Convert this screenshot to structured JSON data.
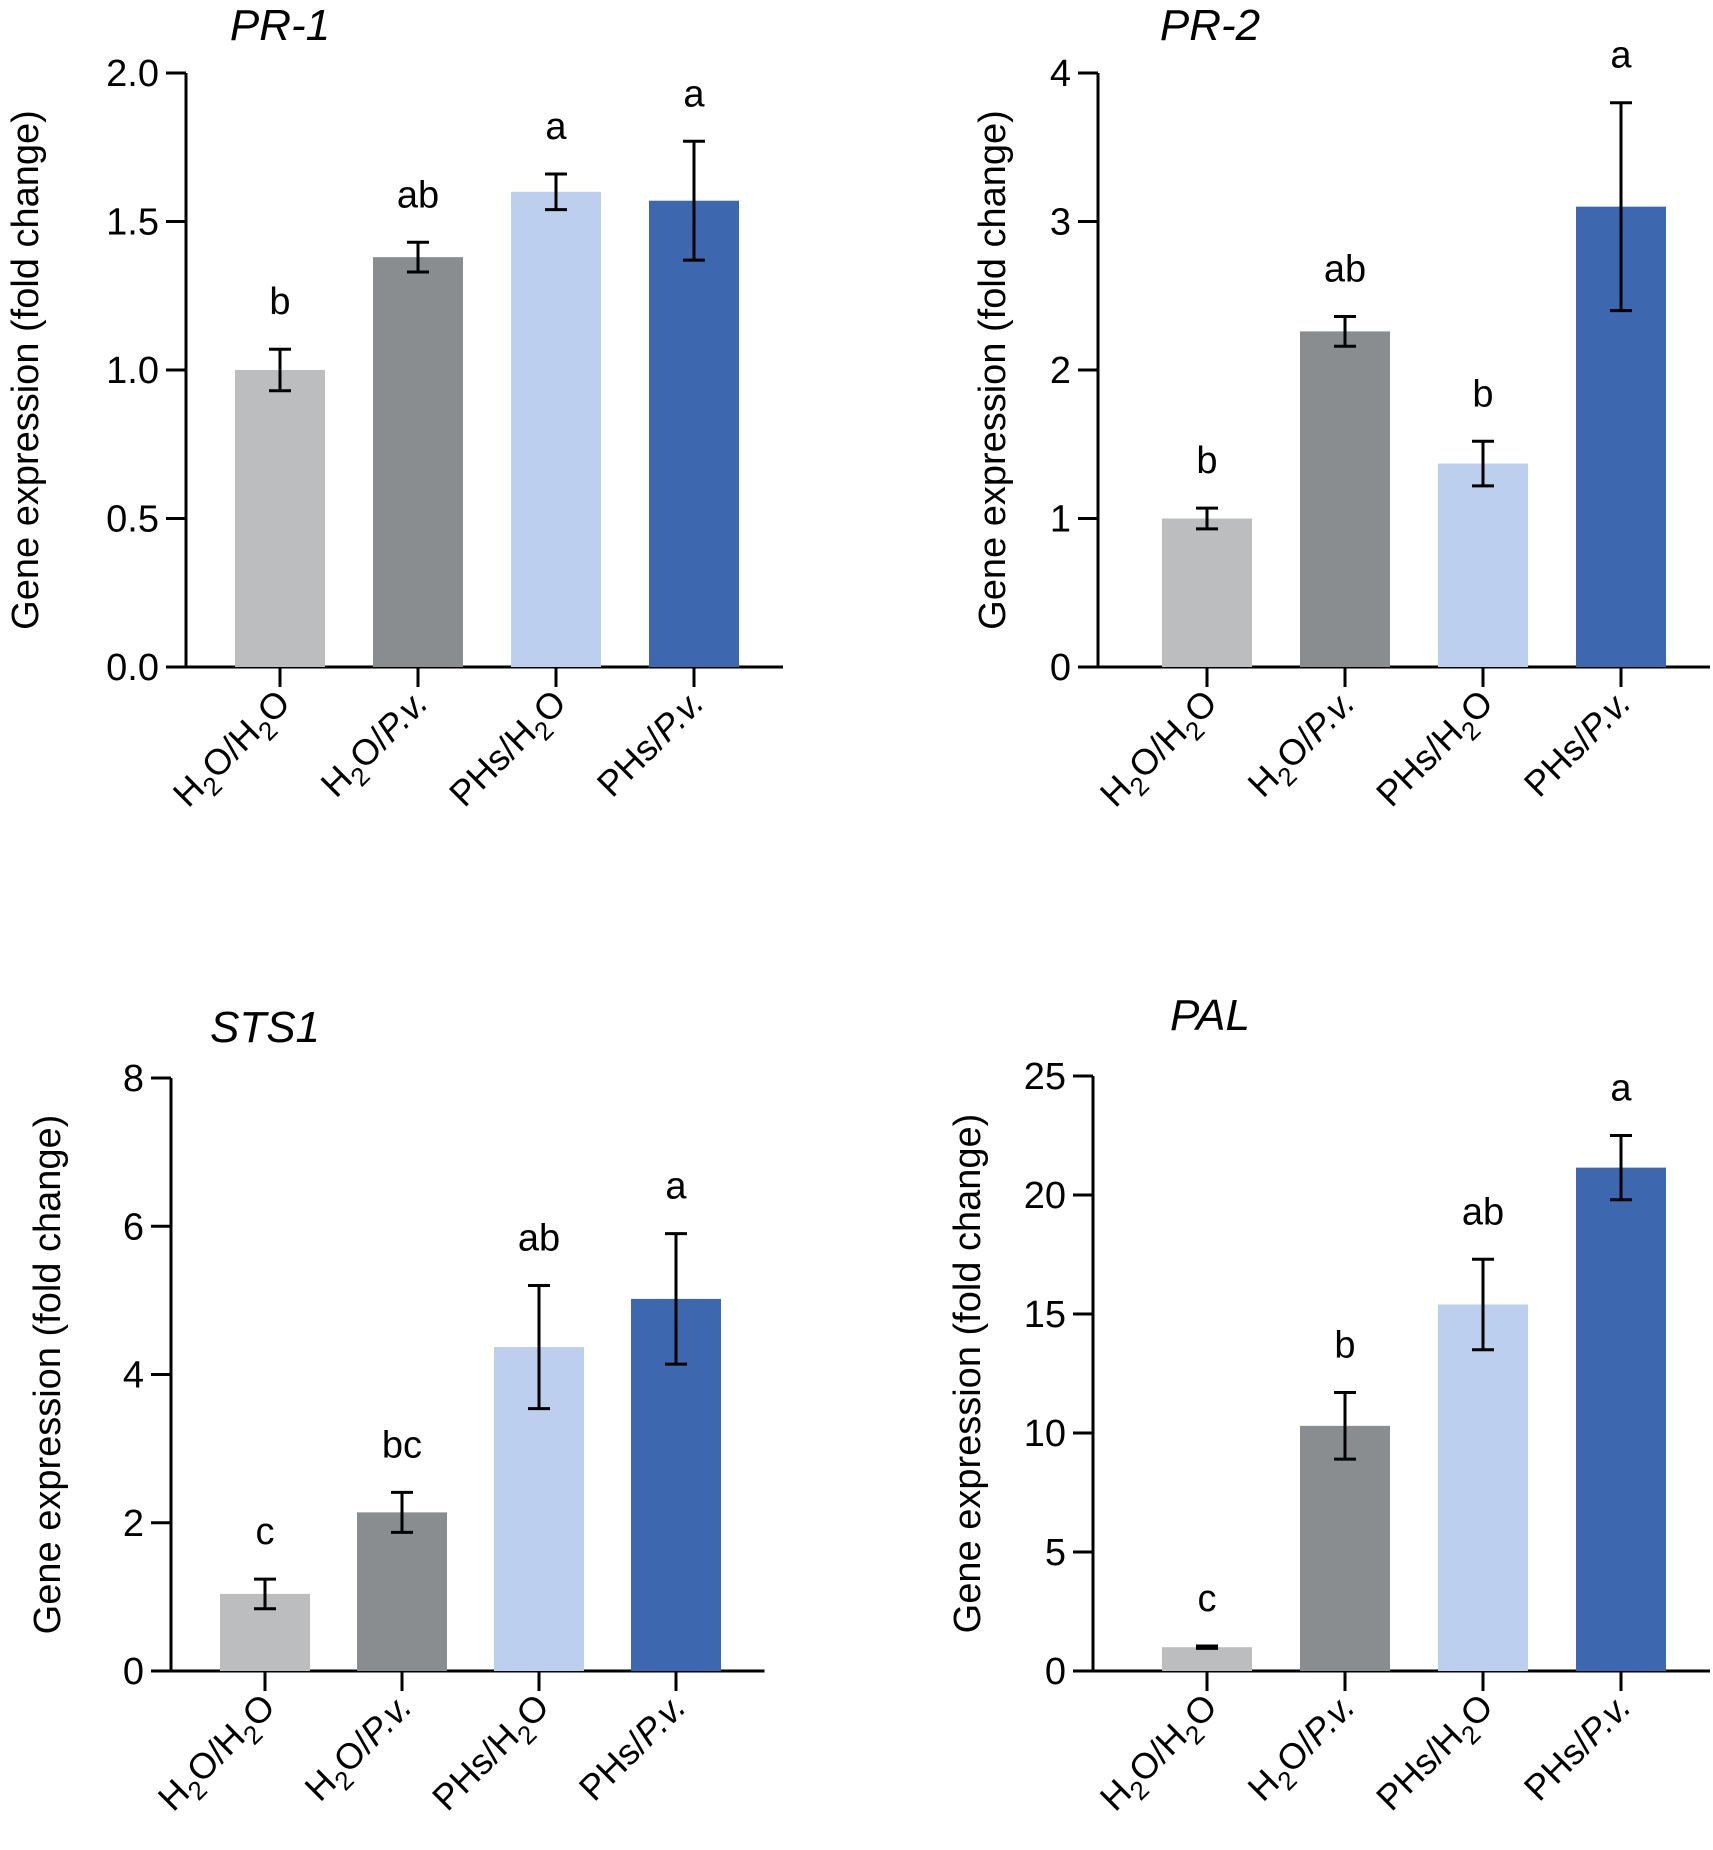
{
  "figure": {
    "ylabel": "Gene expression (fold change)"
  },
  "chart_data": [
    {
      "type": "bar",
      "title": "PR-1",
      "xlabel": "",
      "ylabel": "Gene expression (fold change)",
      "ylim": [
        0,
        2.0
      ],
      "yticks": [
        0.0,
        0.5,
        1.0,
        1.5,
        2.0
      ],
      "ytick_labels": [
        "0.0",
        "0.5",
        "1.0",
        "1.5",
        "2.0"
      ],
      "categories": [
        {
          "prefix": "H",
          "sub": "2",
          "mid": "O/H",
          "sub2": "2",
          "suffix": "O",
          "italic": ""
        },
        {
          "prefix": "H",
          "sub": "2",
          "mid": "O/",
          "sub2": "",
          "suffix": "",
          "italic": "P.v."
        },
        {
          "prefix": "PHs/H",
          "sub": "2",
          "mid": "O",
          "sub2": "",
          "suffix": "",
          "italic": ""
        },
        {
          "prefix": "PHs/",
          "sub": "",
          "mid": "",
          "sub2": "",
          "suffix": "",
          "italic": "P.v."
        }
      ],
      "values": [
        1.0,
        1.38,
        1.6,
        1.57
      ],
      "errors": [
        0.07,
        0.05,
        0.06,
        0.2
      ],
      "significance": [
        "b",
        "ab",
        "a",
        "a"
      ],
      "colors": [
        "#bbbdbf",
        "#8a8d8f",
        "#bccfee",
        "#3d68b0"
      ]
    },
    {
      "type": "bar",
      "title": "PR-2",
      "xlabel": "",
      "ylabel": "Gene expression (fold change)",
      "ylim": [
        0,
        4
      ],
      "yticks": [
        0,
        1,
        2,
        3,
        4
      ],
      "ytick_labels": [
        "0",
        "1",
        "2",
        "3",
        "4"
      ],
      "categories": [
        {
          "prefix": "H",
          "sub": "2",
          "mid": "O/H",
          "sub2": "2",
          "suffix": "O",
          "italic": ""
        },
        {
          "prefix": "H",
          "sub": "2",
          "mid": "O/",
          "sub2": "",
          "suffix": "",
          "italic": "P.v."
        },
        {
          "prefix": "PHs/H",
          "sub": "2",
          "mid": "O",
          "sub2": "",
          "suffix": "",
          "italic": ""
        },
        {
          "prefix": "PHs/",
          "sub": "",
          "mid": "",
          "sub2": "",
          "suffix": "",
          "italic": "P.v."
        }
      ],
      "values": [
        1.0,
        2.26,
        1.37,
        3.1
      ],
      "errors": [
        0.07,
        0.1,
        0.15,
        0.7
      ],
      "significance": [
        "b",
        "ab",
        "b",
        "a"
      ],
      "colors": [
        "#bbbdbf",
        "#8a8d8f",
        "#bccfee",
        "#3d68b0"
      ]
    },
    {
      "type": "bar",
      "title": "STS1",
      "xlabel": "",
      "ylabel": "Gene expression (fold change)",
      "ylim": [
        0,
        8
      ],
      "yticks": [
        0,
        2,
        4,
        6,
        8
      ],
      "ytick_labels": [
        "0",
        "2",
        "4",
        "6",
        "8"
      ],
      "categories": [
        {
          "prefix": "H",
          "sub": "2",
          "mid": "O/H",
          "sub2": "2",
          "suffix": "O",
          "italic": ""
        },
        {
          "prefix": "H",
          "sub": "2",
          "mid": "O/",
          "sub2": "",
          "suffix": "",
          "italic": "P.v."
        },
        {
          "prefix": "PHs/H",
          "sub": "2",
          "mid": "O",
          "sub2": "",
          "suffix": "",
          "italic": ""
        },
        {
          "prefix": "PHs/",
          "sub": "",
          "mid": "",
          "sub2": "",
          "suffix": "",
          "italic": "P.v."
        }
      ],
      "values": [
        1.04,
        2.14,
        4.37,
        5.02
      ],
      "errors": [
        0.2,
        0.27,
        0.83,
        0.88
      ],
      "significance": [
        "c",
        "bc",
        "ab",
        "a"
      ],
      "colors": [
        "#bbbdbf",
        "#8a8d8f",
        "#bccfee",
        "#3d68b0"
      ]
    },
    {
      "type": "bar",
      "title": "PAL",
      "xlabel": "",
      "ylabel": "Gene expression (fold change)",
      "ylim": [
        0,
        25
      ],
      "yticks": [
        0,
        5,
        10,
        15,
        20,
        25
      ],
      "ytick_labels": [
        "0",
        "5",
        "10",
        "15",
        "20",
        "25"
      ],
      "categories": [
        {
          "prefix": "H",
          "sub": "2",
          "mid": "O/H",
          "sub2": "2",
          "suffix": "O",
          "italic": ""
        },
        {
          "prefix": "H",
          "sub": "2",
          "mid": "O/",
          "sub2": "",
          "suffix": "",
          "italic": "P.v."
        },
        {
          "prefix": "PHs/H",
          "sub": "2",
          "mid": "O",
          "sub2": "",
          "suffix": "",
          "italic": ""
        },
        {
          "prefix": "PHs/",
          "sub": "",
          "mid": "",
          "sub2": "",
          "suffix": "",
          "italic": "P.v."
        }
      ],
      "values": [
        1.0,
        10.3,
        15.4,
        21.15
      ],
      "errors": [
        0.05,
        1.4,
        1.9,
        1.35
      ],
      "significance": [
        "c",
        "b",
        "ab",
        "a"
      ],
      "colors": [
        "#bbbdbf",
        "#8a8d8f",
        "#bccfee",
        "#3d68b0"
      ]
    }
  ]
}
